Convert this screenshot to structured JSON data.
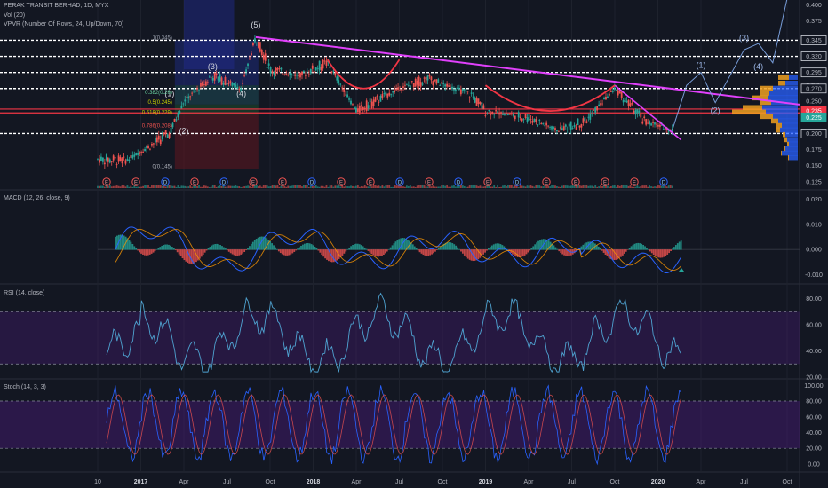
{
  "chart_title": "PERAK TRANSIT BERHAD, 1D, MYX",
  "volume_label": "Vol (20)",
  "vpvr_label": "VPVR (Number Of Rows, 24, Up/Down, 70)",
  "macd_label": "MACD (12, 26, close, 9)",
  "rsi_label": "RSI (14, close)",
  "stoch_label": "Stoch (14, 3, 3)",
  "colors": {
    "background": "#131722",
    "up": "#26a69a",
    "down": "#ef5350",
    "trendline": "#e040fb",
    "support": "#f23645",
    "projection": "#8ab4f8",
    "rsi_line": "#4fa3d1",
    "band": "#4a1a7a"
  },
  "chart_data": [
    {
      "type": "line",
      "title": "PERAK TRANSIT BERHAD, 1D, MYX",
      "x_ticks": [
        "10",
        "2017",
        "Apr",
        "Jul",
        "Oct",
        "2018",
        "Apr",
        "Jul",
        "Oct",
        "2019",
        "Apr",
        "Jul",
        "Oct",
        "2020",
        "Apr",
        "Jul",
        "Oct"
      ],
      "y_ticks": [
        0.4,
        0.375,
        0.35,
        0.325,
        0.3,
        0.275,
        0.25,
        0.225,
        0.2,
        0.175,
        0.15,
        0.125
      ],
      "ylim": [
        0.115,
        0.405
      ],
      "price_labels": [
        {
          "value": 0.4,
          "text": "0.400"
        },
        {
          "value": 0.375,
          "text": "0.375"
        },
        {
          "value": 0.345,
          "text": "0.345",
          "style": "box"
        },
        {
          "value": 0.32,
          "text": "0.320",
          "style": "box"
        },
        {
          "value": 0.295,
          "text": "0.295",
          "style": "box"
        },
        {
          "value": 0.275,
          "text": "0.275"
        },
        {
          "value": 0.27,
          "text": "0.270",
          "style": "box"
        },
        {
          "value": 0.25,
          "text": "0.250"
        },
        {
          "value": 0.235,
          "text": "0.235",
          "style": "red"
        },
        {
          "value": 0.225,
          "text": "0.225",
          "style": "green"
        },
        {
          "value": 0.2,
          "text": "0.200",
          "style": "box"
        },
        {
          "value": 0.175,
          "text": "0.175"
        },
        {
          "value": 0.15,
          "text": "0.150"
        },
        {
          "value": 0.125,
          "text": "0.125"
        }
      ],
      "horizontal_levels": [
        0.345,
        0.32,
        0.295,
        0.27,
        0.2
      ],
      "support_levels": [
        0.238,
        0.232
      ],
      "fib_labels": [
        "0.5(0.245)",
        "0.618(0.229)",
        "0.382(0.26)",
        "0(0.145)",
        "0.786(0.208)",
        "1(0.345)"
      ],
      "wave_labels": [
        "(5)",
        "(3)",
        "(4)",
        "(1)",
        "(2)",
        "(1)",
        "(2)",
        "(3)",
        "(4)"
      ],
      "event_markers": [
        "E",
        "E",
        "D",
        "E",
        "D",
        "E",
        "E",
        "D",
        "E",
        "E",
        "D",
        "E",
        "D",
        "E",
        "D",
        "E",
        "E",
        "E",
        "E",
        "D"
      ],
      "key_prices": [
        {
          "date": "2016-10",
          "value": 0.16
        },
        {
          "date": "2016-12",
          "value": 0.158
        },
        {
          "date": "2017-03",
          "value": 0.2
        },
        {
          "date": "2017-04",
          "value": 0.25
        },
        {
          "date": "2017-06",
          "value": 0.29
        },
        {
          "date": "2017-08",
          "value": 0.27
        },
        {
          "date": "2017-09",
          "value": 0.35
        },
        {
          "date": "2017-10",
          "value": 0.3
        },
        {
          "date": "2017-12",
          "value": 0.29
        },
        {
          "date": "2018-02",
          "value": 0.31
        },
        {
          "date": "2018-04",
          "value": 0.235
        },
        {
          "date": "2018-07",
          "value": 0.27
        },
        {
          "date": "2018-09",
          "value": 0.285
        },
        {
          "date": "2018-12",
          "value": 0.26
        },
        {
          "date": "2019-01",
          "value": 0.235
        },
        {
          "date": "2019-04",
          "value": 0.225
        },
        {
          "date": "2019-06",
          "value": 0.205
        },
        {
          "date": "2019-08",
          "value": 0.22
        },
        {
          "date": "2019-10",
          "value": 0.27
        },
        {
          "date": "2019-12",
          "value": 0.22
        },
        {
          "date": "2020-02",
          "value": 0.205
        }
      ]
    },
    {
      "type": "line",
      "title": "MACD (12, 26, close, 9)",
      "y_ticks": [
        0.02,
        0.01,
        0.0,
        -0.01
      ],
      "tick_labels": [
        "0.020",
        "0.010",
        "0.000",
        "-0.010"
      ],
      "ylim": [
        -0.013,
        0.023
      ]
    },
    {
      "type": "line",
      "title": "RSI (14, close)",
      "y_ticks": [
        80,
        60,
        40,
        20
      ],
      "tick_labels": [
        "80.00",
        "60.00",
        "40.00",
        "20.00"
      ],
      "band": [
        30,
        70
      ],
      "ylim": [
        20,
        90
      ]
    },
    {
      "type": "line",
      "title": "Stoch (14, 3, 3)",
      "y_ticks": [
        100,
        80,
        60,
        40,
        20,
        0
      ],
      "tick_labels": [
        "100.00",
        "80.00",
        "60.00",
        "40.00",
        "20.00",
        "0.00"
      ],
      "band": [
        20,
        80
      ],
      "ylim": [
        -8,
        106
      ]
    }
  ]
}
